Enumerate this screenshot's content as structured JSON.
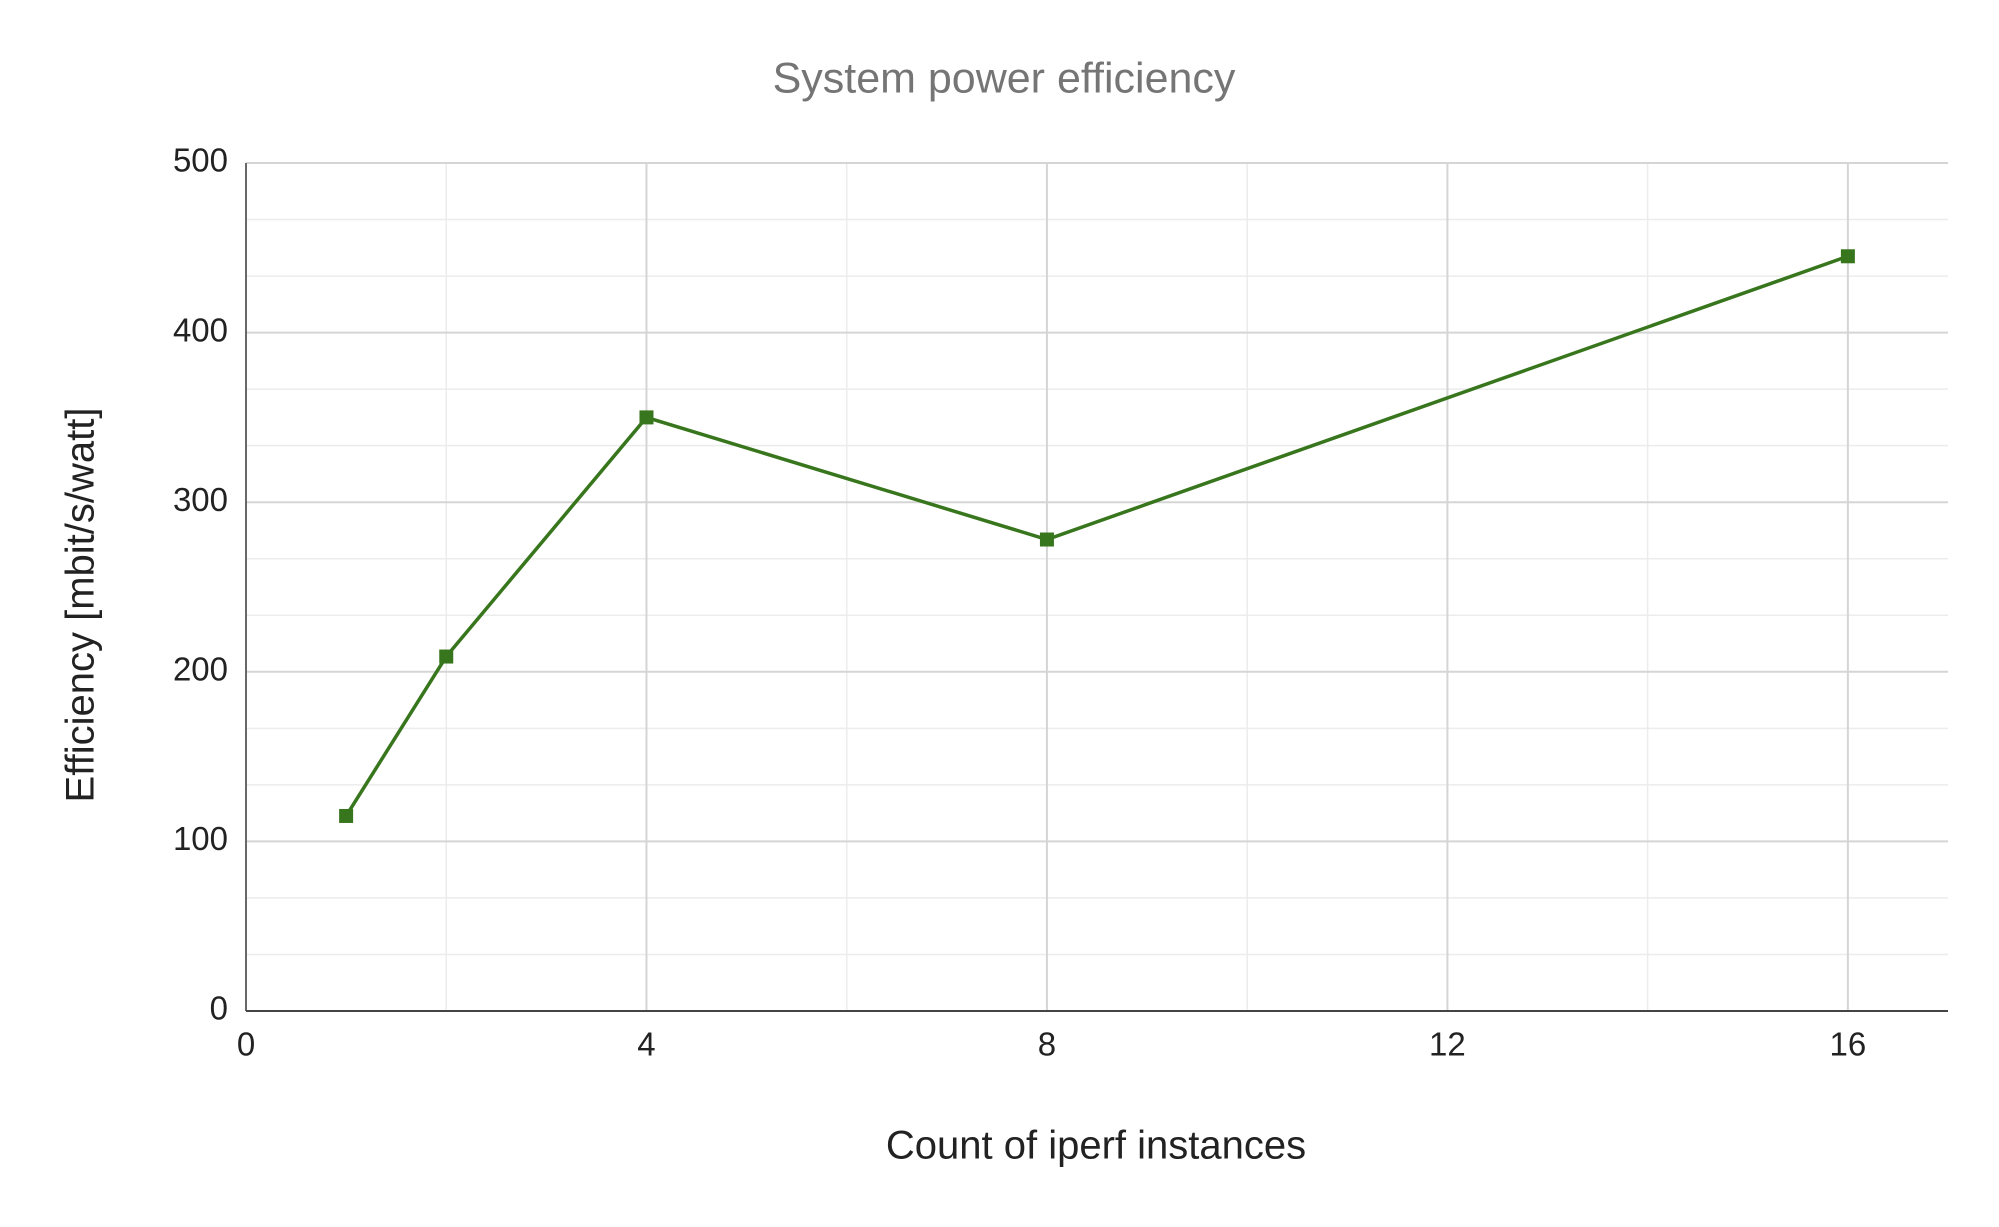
{
  "chart_data": {
    "type": "line",
    "title": "System power efficiency",
    "x_label": "Count of iperf instances",
    "y_label": "Efficiency [mbit/s/watt]",
    "x": [
      1,
      2,
      4,
      8,
      16
    ],
    "series": [
      {
        "color": "#38761d",
        "values": [
          115,
          209,
          350,
          278,
          445
        ]
      }
    ],
    "xlim": [
      0,
      17
    ],
    "xticks": [
      0,
      4,
      8,
      12,
      16
    ],
    "ylim": [
      0,
      500
    ],
    "yticks": [
      0,
      100,
      200,
      300,
      400,
      500
    ],
    "grid": true
  }
}
